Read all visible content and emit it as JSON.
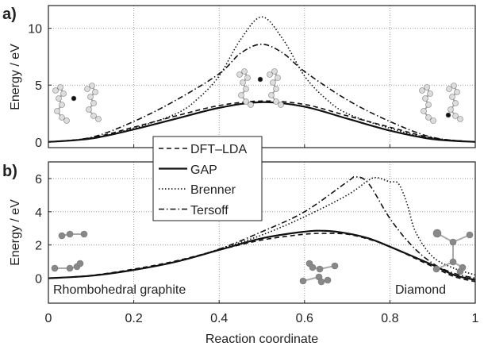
{
  "chart_data": [
    {
      "type": "line",
      "panel_label": "a)",
      "ylabel": "Energy / eV",
      "xlim": [
        0,
        1
      ],
      "ylim": [
        -0.5,
        12
      ],
      "yticks": [
        0,
        5,
        10
      ],
      "xticks": [
        0,
        0.2,
        0.4,
        0.6,
        0.8,
        1
      ],
      "grid": true,
      "series": [
        {
          "name": "DFT–LDA",
          "style": "dashed",
          "x": [
            0,
            0.1,
            0.2,
            0.3,
            0.4,
            0.5,
            0.6,
            0.7,
            0.8,
            0.9,
            1
          ],
          "y": [
            0,
            0.35,
            1.3,
            2.3,
            3.2,
            3.6,
            3.3,
            2.3,
            1.3,
            0.35,
            0
          ]
        },
        {
          "name": "GAP",
          "style": "solid",
          "x": [
            0,
            0.1,
            0.2,
            0.3,
            0.4,
            0.5,
            0.6,
            0.7,
            0.8,
            0.9,
            1
          ],
          "y": [
            0,
            0.3,
            1.1,
            2.05,
            3.0,
            3.5,
            3.1,
            2.05,
            1.0,
            0.25,
            0
          ]
        },
        {
          "name": "Brenner",
          "style": "dotted",
          "x": [
            0,
            0.1,
            0.2,
            0.3,
            0.35,
            0.4,
            0.45,
            0.5,
            0.55,
            0.6,
            0.65,
            0.7,
            0.8,
            0.9,
            1
          ],
          "y": [
            0,
            0.3,
            1.2,
            2.5,
            3.8,
            5.8,
            9.0,
            11.0,
            9.0,
            5.8,
            3.8,
            2.5,
            1.2,
            0.3,
            0
          ]
        },
        {
          "name": "Tersoff",
          "style": "dashdot",
          "x": [
            0,
            0.1,
            0.2,
            0.3,
            0.4,
            0.45,
            0.5,
            0.55,
            0.6,
            0.7,
            0.8,
            0.9,
            1
          ],
          "y": [
            0,
            0.4,
            1.8,
            3.7,
            6.0,
            7.8,
            8.6,
            7.8,
            6.2,
            3.7,
            1.8,
            0.4,
            0
          ]
        }
      ]
    },
    {
      "type": "line",
      "panel_label": "b)",
      "xlabel": "Reaction coordinate",
      "ylabel": "Energy / eV",
      "xlim": [
        0,
        1
      ],
      "ylim": [
        -1.5,
        7
      ],
      "yticks": [
        0,
        2,
        4,
        6
      ],
      "xticks": [
        0,
        0.2,
        0.4,
        0.6,
        0.8,
        1
      ],
      "grid": true,
      "annotations": [
        "Rhombohedral graphite",
        "Diamond"
      ],
      "series": [
        {
          "name": "DFT–LDA",
          "style": "dashed",
          "x": [
            0,
            0.1,
            0.2,
            0.3,
            0.4,
            0.5,
            0.6,
            0.65,
            0.7,
            0.75,
            0.8,
            0.9,
            0.95,
            1
          ],
          "y": [
            0,
            0.17,
            0.55,
            1.05,
            1.7,
            2.3,
            2.65,
            2.7,
            2.65,
            2.35,
            1.9,
            0.7,
            0.1,
            -0.2
          ]
        },
        {
          "name": "GAP",
          "style": "solid",
          "x": [
            0,
            0.1,
            0.2,
            0.3,
            0.4,
            0.5,
            0.6,
            0.65,
            0.7,
            0.75,
            0.8,
            0.9,
            0.95,
            1
          ],
          "y": [
            0,
            0.15,
            0.5,
            1.0,
            1.7,
            2.4,
            2.8,
            2.85,
            2.7,
            2.4,
            1.9,
            0.8,
            0.2,
            -0.1
          ]
        },
        {
          "name": "Brenner",
          "style": "dotted",
          "x": [
            0,
            0.1,
            0.2,
            0.3,
            0.4,
            0.5,
            0.6,
            0.7,
            0.75,
            0.77,
            0.8,
            0.82,
            0.84,
            0.86,
            0.9,
            0.95,
            1
          ],
          "y": [
            0,
            0.15,
            0.5,
            1.0,
            1.75,
            2.6,
            3.7,
            5.0,
            5.9,
            6.05,
            5.8,
            5.7,
            4.5,
            2.8,
            1.3,
            0.6,
            0.2
          ]
        },
        {
          "name": "Tersoff",
          "style": "dashdot",
          "x": [
            0,
            0.1,
            0.2,
            0.3,
            0.4,
            0.5,
            0.6,
            0.7,
            0.72,
            0.75,
            0.8,
            0.85,
            0.9,
            0.95,
            1
          ],
          "y": [
            0,
            0.15,
            0.5,
            1.0,
            1.75,
            2.8,
            4.0,
            5.8,
            6.1,
            5.7,
            3.6,
            2.0,
            0.9,
            0.3,
            0
          ]
        }
      ]
    }
  ],
  "legend": {
    "placement": "center-between-panels",
    "entries": [
      "DFT–LDA",
      "GAP",
      "Brenner",
      "Tersoff"
    ]
  }
}
